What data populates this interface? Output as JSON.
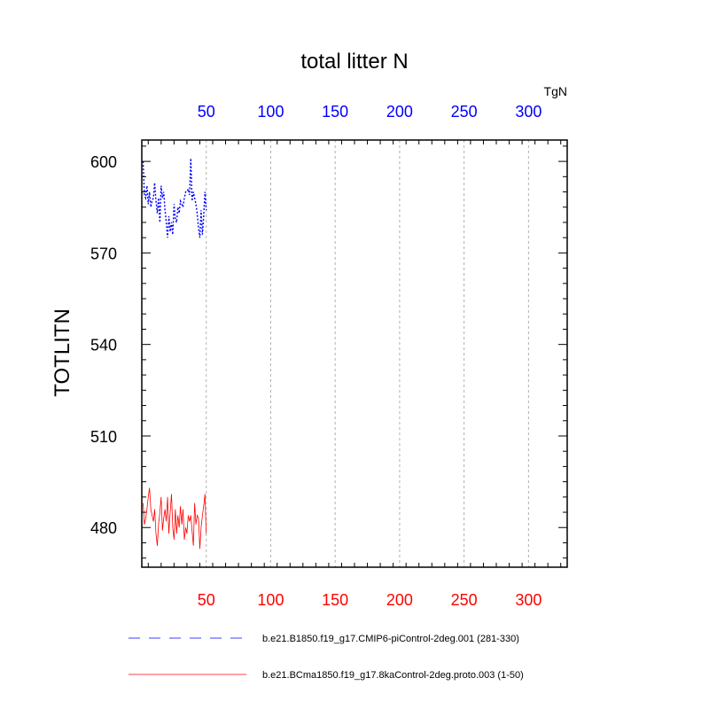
{
  "chart_data": {
    "type": "line",
    "title": "total litter N",
    "units_label": "TgN",
    "ylabel": "TOTLITN",
    "xlim": [
      0,
      330
    ],
    "ylim": [
      467,
      607
    ],
    "xticks_major": [
      50,
      100,
      150,
      200,
      250,
      300
    ],
    "xtick_labels": [
      "50",
      "100",
      "150",
      "200",
      "250",
      "300"
    ],
    "yticks_major": [
      480,
      510,
      540,
      570,
      600
    ],
    "ytick_labels": [
      "480",
      "510",
      "540",
      "570",
      "600"
    ],
    "grid": "vertical dashed at major x ticks",
    "top_axis_color": "#0000ff",
    "bottom_axis_color": "#ff0000",
    "series": [
      {
        "name": "b.e21.B1850.f19_g17.CMIP6-piControl-2deg.001 (281-330)",
        "color": "#0000ff",
        "dash": "dashed",
        "x": [
          1,
          2,
          3,
          4,
          5,
          6,
          7,
          8,
          9,
          10,
          11,
          12,
          13,
          14,
          15,
          16,
          17,
          18,
          19,
          20,
          21,
          22,
          23,
          24,
          25,
          26,
          27,
          28,
          29,
          30,
          31,
          32,
          33,
          34,
          35,
          36,
          37,
          38,
          39,
          40,
          41,
          42,
          43,
          44,
          45,
          46,
          47,
          48,
          49,
          50
        ],
        "y": [
          600,
          589,
          588,
          592,
          586,
          590,
          585,
          587,
          588,
          593,
          587,
          583,
          588,
          580,
          592,
          588,
          590,
          584,
          580,
          575,
          582,
          577,
          580,
          576,
          586,
          581,
          580,
          585,
          583,
          587,
          586,
          585,
          588,
          590,
          590,
          591,
          589,
          601,
          587,
          590,
          588,
          586,
          583,
          578,
          575,
          584,
          576,
          582,
          590,
          584
        ]
      },
      {
        "name": "b.e21.BCma1850.f19_g17.8kaControl-2deg.proto.003 (1-50)",
        "color": "#ff0000",
        "dash": "solid",
        "x": [
          1,
          2,
          3,
          4,
          5,
          6,
          7,
          8,
          9,
          10,
          11,
          12,
          13,
          14,
          15,
          16,
          17,
          18,
          19,
          20,
          21,
          22,
          23,
          24,
          25,
          26,
          27,
          28,
          29,
          30,
          31,
          32,
          33,
          34,
          35,
          36,
          37,
          38,
          39,
          40,
          41,
          42,
          43,
          44,
          45,
          46,
          47,
          48,
          49,
          50
        ],
        "y": [
          488,
          481,
          483,
          486,
          490,
          493,
          486,
          484,
          482,
          486,
          478,
          474,
          481,
          485,
          490,
          479,
          483,
          486,
          482,
          490,
          478,
          485,
          491,
          480,
          476,
          486,
          478,
          484,
          480,
          487,
          481,
          486,
          476,
          480,
          478,
          484,
          482,
          484,
          479,
          474,
          488,
          481,
          484,
          483,
          473,
          480,
          484,
          487,
          491,
          478
        ]
      }
    ]
  }
}
